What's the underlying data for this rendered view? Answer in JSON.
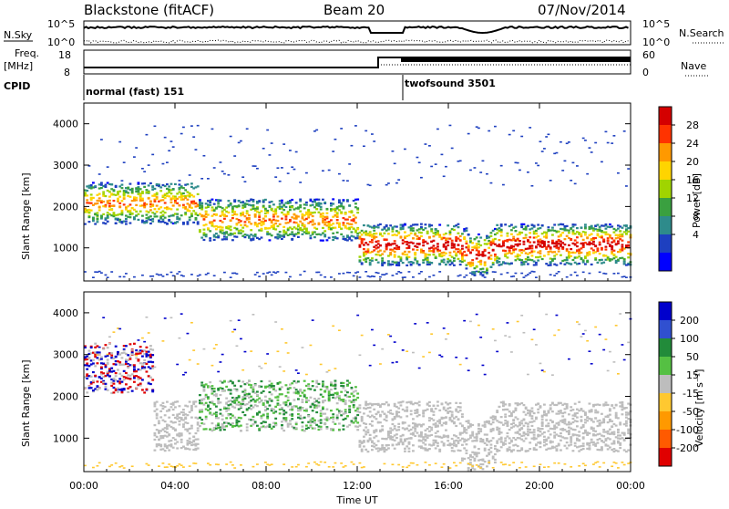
{
  "header": {
    "site": "Blackstone (fitACF)",
    "beam": "Beam 20",
    "date": "07/Nov/2014"
  },
  "strip": {
    "nsky_label": "N.Sky",
    "nsky_ticks": [
      "10^5",
      "10^0"
    ],
    "nsearch_label": "N.Search",
    "freq_label": "Freq.",
    "freq_unit": "[MHz]",
    "freq_ticks": [
      "18",
      "8"
    ],
    "nave_label": "Nave",
    "nave_ticks": [
      "60",
      "0"
    ],
    "cpid_label": "CPID",
    "cpid_segments": [
      {
        "label": "normal (fast) 151",
        "start_hour": 0
      },
      {
        "label": "twofsound 3501",
        "start_hour": 14
      }
    ]
  },
  "chart_data": [
    {
      "type": "heatmap",
      "title": "",
      "xlabel": "Time UT",
      "ylabel": "Slant Range [km]",
      "xlim": [
        0,
        24
      ],
      "ylim": [
        200,
        4500
      ],
      "x_ticks": [
        "00:00",
        "04:00",
        "08:00",
        "12:00",
        "16:00",
        "20:00",
        "00:00"
      ],
      "y_ticks": [
        1000,
        2000,
        3000,
        4000
      ],
      "colorbar": {
        "label": "Power [dB]",
        "ticks": [
          "28",
          "24",
          "20",
          "16",
          "12",
          "8",
          "4"
        ],
        "colors": [
          "#d40000",
          "#ff3300",
          "#ff9900",
          "#ffd400",
          "#a0d400",
          "#3aa040",
          "#2e8b8b",
          "#1e40c0",
          "#0000ff"
        ]
      },
      "description_bands": [
        {
          "hour_start": 0,
          "hour_end": 5,
          "range_center_km": 2100,
          "level_db": 20
        },
        {
          "hour_start": 5,
          "hour_end": 12,
          "range_center_km": 1700,
          "level_db": 16
        },
        {
          "hour_start": 12,
          "hour_end": 24,
          "range_center_km": 1100,
          "level_db": 28
        }
      ]
    },
    {
      "type": "heatmap",
      "title": "",
      "xlabel": "Time UT",
      "ylabel": "Slant Range [km]",
      "xlim": [
        0,
        24
      ],
      "ylim": [
        200,
        4500
      ],
      "x_ticks": [
        "00:00",
        "04:00",
        "08:00",
        "12:00",
        "16:00",
        "20:00",
        "00:00"
      ],
      "y_ticks": [
        1000,
        2000,
        3000,
        4000
      ],
      "colorbar": {
        "label": "Velocity [m s⁻¹]",
        "ticks": [
          "200",
          "100",
          "50",
          "15",
          "-15",
          "-50",
          "-100",
          "-200"
        ],
        "colors": [
          "#0000cc",
          "#3050d0",
          "#228b3a",
          "#55c043",
          "#bdbdbd",
          "#ffc830",
          "#ff9900",
          "#ff5a00",
          "#e00000"
        ]
      },
      "description_bands": [
        {
          "hour_start": 0,
          "hour_end": 3,
          "range_center_km": 2700,
          "velocity": -100
        },
        {
          "hour_start": 5,
          "hour_end": 12,
          "range_center_km": 1800,
          "velocity": 50
        },
        {
          "hour_start": 12,
          "hour_end": 24,
          "range_center_km": 1300,
          "velocity": 0
        }
      ]
    }
  ]
}
